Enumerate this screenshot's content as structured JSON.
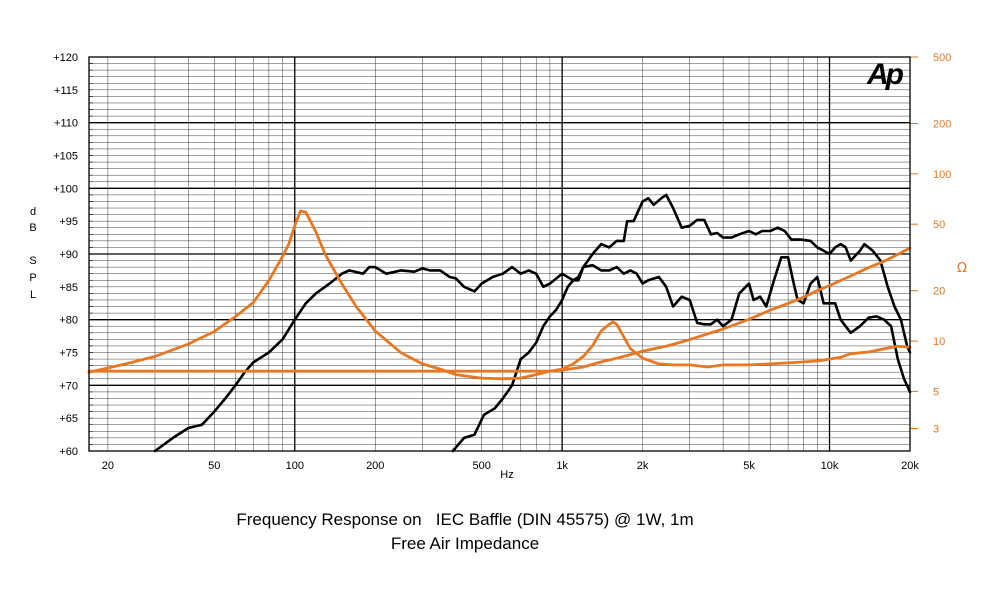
{
  "chart_data": {
    "type": "line",
    "title_lines": [
      "Frequency Response on   IEC Baffle (DIN 45575) @ 1W, 1m",
      "Free Air Impedance"
    ],
    "xlabel": "Hz",
    "ylabel_left_letters": [
      "d",
      "B",
      "",
      "S",
      "P",
      "L"
    ],
    "ylabel_right": "Ω",
    "logo_text": "Ap",
    "x_scale": "log",
    "xlim": [
      17,
      20000
    ],
    "ylim_left": [
      60,
      120
    ],
    "ylim_right": [
      2.2,
      500
    ],
    "y_right_scale": "log",
    "x_ticks": [
      {
        "value": 20,
        "label": "20"
      },
      {
        "value": 50,
        "label": "50"
      },
      {
        "value": 100,
        "label": "100"
      },
      {
        "value": 200,
        "label": "200"
      },
      {
        "value": 500,
        "label": "500"
      },
      {
        "value": 1000,
        "label": "1k"
      },
      {
        "value": 2000,
        "label": "2k"
      },
      {
        "value": 5000,
        "label": "5k"
      },
      {
        "value": 10000,
        "label": "10k"
      },
      {
        "value": 20000,
        "label": "20k"
      }
    ],
    "y_left_ticks": [
      {
        "value": 120,
        "label": "+120"
      },
      {
        "value": 115,
        "label": "+115"
      },
      {
        "value": 110,
        "label": "+110"
      },
      {
        "value": 105,
        "label": "+105"
      },
      {
        "value": 100,
        "label": "+100"
      },
      {
        "value": 95,
        "label": "+95"
      },
      {
        "value": 90,
        "label": "+90"
      },
      {
        "value": 85,
        "label": "+85"
      },
      {
        "value": 80,
        "label": "+80"
      },
      {
        "value": 75,
        "label": "+75"
      },
      {
        "value": 70,
        "label": "+70"
      },
      {
        "value": 65,
        "label": "+65"
      },
      {
        "value": 60,
        "label": "+60"
      }
    ],
    "y_right_ticks": [
      {
        "value": 500,
        "label": "500"
      },
      {
        "value": 200,
        "label": "200"
      },
      {
        "value": 100,
        "label": "100"
      },
      {
        "value": 50,
        "label": "50"
      },
      {
        "value": 20,
        "label": "20"
      },
      {
        "value": 10,
        "label": "10"
      },
      {
        "value": 5,
        "label": "5"
      },
      {
        "value": 3,
        "label": "3"
      }
    ],
    "grid": true,
    "series": [
      {
        "axis": "left",
        "color": "#000000",
        "points": [
          [
            30,
            60
          ],
          [
            35,
            62
          ],
          [
            40,
            63.5
          ],
          [
            45,
            64
          ],
          [
            50,
            66
          ],
          [
            55,
            68
          ],
          [
            60,
            70
          ],
          [
            65,
            72
          ],
          [
            70,
            73.5
          ],
          [
            80,
            75
          ],
          [
            90,
            77
          ],
          [
            100,
            80
          ],
          [
            110,
            82.5
          ],
          [
            120,
            84
          ],
          [
            135,
            85.5
          ],
          [
            150,
            87
          ],
          [
            160,
            87.5
          ],
          [
            180,
            87
          ],
          [
            190,
            88
          ],
          [
            200,
            88
          ],
          [
            220,
            87
          ],
          [
            250,
            87.5
          ],
          [
            280,
            87.3
          ],
          [
            300,
            87.8
          ],
          [
            320,
            87.5
          ],
          [
            350,
            87.5
          ],
          [
            380,
            86.5
          ],
          [
            400,
            86.3
          ],
          [
            430,
            85
          ],
          [
            470,
            84.3
          ],
          [
            500,
            85.5
          ],
          [
            550,
            86.5
          ],
          [
            600,
            87
          ],
          [
            650,
            88
          ],
          [
            700,
            87
          ],
          [
            750,
            87.5
          ],
          [
            800,
            87
          ],
          [
            850,
            85
          ],
          [
            900,
            85.5
          ],
          [
            1000,
            87
          ],
          [
            1100,
            86
          ],
          [
            1150,
            86
          ],
          [
            1200,
            88
          ],
          [
            1300,
            88.3
          ],
          [
            1400,
            87.5
          ],
          [
            1500,
            87.5
          ],
          [
            1600,
            88
          ],
          [
            1700,
            87
          ],
          [
            1800,
            87.5
          ],
          [
            1900,
            87
          ],
          [
            2000,
            85.5
          ],
          [
            2100,
            86
          ],
          [
            2300,
            86.5
          ],
          [
            2450,
            85
          ],
          [
            2600,
            82
          ],
          [
            2800,
            83.5
          ],
          [
            3000,
            83
          ],
          [
            3200,
            79.5
          ],
          [
            3400,
            79.3
          ],
          [
            3600,
            79.3
          ],
          [
            3800,
            80
          ],
          [
            4000,
            79
          ],
          [
            4300,
            80
          ],
          [
            4600,
            84
          ],
          [
            5000,
            85.5
          ],
          [
            5200,
            83
          ],
          [
            5500,
            83.5
          ],
          [
            5800,
            82
          ],
          [
            6200,
            86
          ],
          [
            6600,
            89.5
          ],
          [
            7000,
            89.5
          ],
          [
            7300,
            86
          ],
          [
            7600,
            83
          ],
          [
            8000,
            82.5
          ],
          [
            8500,
            85.5
          ],
          [
            9000,
            86.5
          ],
          [
            9500,
            82.5
          ],
          [
            10000,
            82.5
          ],
          [
            10500,
            82.5
          ],
          [
            11000,
            80
          ],
          [
            12000,
            78
          ],
          [
            13000,
            79
          ],
          [
            14000,
            80.3
          ],
          [
            15000,
            80.5
          ],
          [
            16000,
            80
          ],
          [
            17000,
            79
          ],
          [
            18000,
            74
          ],
          [
            19000,
            71
          ],
          [
            20000,
            69
          ]
        ]
      },
      {
        "axis": "left",
        "color": "#000000",
        "points": [
          [
            390,
            60
          ],
          [
            430,
            62
          ],
          [
            470,
            62.5
          ],
          [
            510,
            65.5
          ],
          [
            560,
            66.5
          ],
          [
            600,
            68
          ],
          [
            650,
            70
          ],
          [
            700,
            74
          ],
          [
            750,
            75
          ],
          [
            800,
            76.5
          ],
          [
            850,
            79
          ],
          [
            900,
            80.5
          ],
          [
            950,
            81.5
          ],
          [
            1000,
            83
          ],
          [
            1050,
            85
          ],
          [
            1100,
            86
          ],
          [
            1150,
            86.5
          ],
          [
            1200,
            88
          ],
          [
            1300,
            90
          ],
          [
            1400,
            91.5
          ],
          [
            1500,
            91
          ],
          [
            1600,
            92
          ],
          [
            1700,
            92
          ],
          [
            1750,
            95
          ],
          [
            1850,
            95
          ],
          [
            2000,
            98
          ],
          [
            2100,
            98.5
          ],
          [
            2200,
            97.5
          ],
          [
            2350,
            98.5
          ],
          [
            2450,
            99
          ],
          [
            2600,
            97
          ],
          [
            2800,
            94
          ],
          [
            3000,
            94.3
          ],
          [
            3200,
            95.2
          ],
          [
            3400,
            95.2
          ],
          [
            3600,
            93
          ],
          [
            3800,
            93.2
          ],
          [
            4000,
            92.5
          ],
          [
            4300,
            92.5
          ],
          [
            4600,
            93
          ],
          [
            5000,
            93.5
          ],
          [
            5300,
            93
          ],
          [
            5600,
            93.5
          ],
          [
            6000,
            93.5
          ],
          [
            6400,
            94
          ],
          [
            6800,
            93.5
          ],
          [
            7200,
            92.2
          ],
          [
            7800,
            92.2
          ],
          [
            8500,
            92
          ],
          [
            9000,
            91
          ],
          [
            9500,
            90.5
          ],
          [
            10000,
            90
          ],
          [
            10500,
            91
          ],
          [
            11000,
            91.5
          ],
          [
            11500,
            91
          ],
          [
            12000,
            89
          ],
          [
            13000,
            90.5
          ],
          [
            13500,
            91.5
          ],
          [
            14500,
            90.5
          ],
          [
            15500,
            89
          ],
          [
            16500,
            85
          ],
          [
            17500,
            82
          ],
          [
            18500,
            80
          ],
          [
            19500,
            76
          ],
          [
            20000,
            75
          ]
        ]
      },
      {
        "axis": "right",
        "color": "#e87722",
        "points": [
          [
            17,
            6.6
          ],
          [
            20,
            6.6
          ],
          [
            30,
            6.6
          ],
          [
            50,
            6.6
          ],
          [
            100,
            6.6
          ],
          [
            200,
            6.6
          ],
          [
            300,
            6.6
          ],
          [
            400,
            6.6
          ],
          [
            500,
            6.6
          ],
          [
            700,
            6.6
          ],
          [
            900,
            6.6
          ],
          [
            1000,
            6.7
          ],
          [
            1200,
            7.0
          ],
          [
            1400,
            7.5
          ],
          [
            1500,
            7.7
          ],
          [
            1600,
            7.9
          ],
          [
            1800,
            8.3
          ],
          [
            2000,
            8.7
          ],
          [
            2500,
            9.4
          ],
          [
            3000,
            10.2
          ],
          [
            4000,
            11.8
          ],
          [
            5000,
            13.5
          ],
          [
            6000,
            15.3
          ],
          [
            7000,
            16.8
          ],
          [
            8000,
            18.3
          ],
          [
            9000,
            20.0
          ],
          [
            10000,
            21.5
          ],
          [
            12000,
            24.5
          ],
          [
            14000,
            27.5
          ],
          [
            16000,
            30.0
          ],
          [
            18000,
            33.0
          ],
          [
            20000,
            36.0
          ]
        ]
      },
      {
        "axis": "right",
        "color": "#e87722",
        "points": [
          [
            17,
            6.5
          ],
          [
            20,
            6.9
          ],
          [
            25,
            7.5
          ],
          [
            30,
            8.1
          ],
          [
            40,
            9.6
          ],
          [
            50,
            11.4
          ],
          [
            60,
            14
          ],
          [
            70,
            17
          ],
          [
            80,
            23
          ],
          [
            90,
            32
          ],
          [
            95,
            38
          ],
          [
            100,
            49
          ],
          [
            105,
            60
          ],
          [
            110,
            59
          ],
          [
            120,
            45
          ],
          [
            130,
            33
          ],
          [
            150,
            22
          ],
          [
            170,
            16
          ],
          [
            200,
            11.5
          ],
          [
            250,
            8.5
          ],
          [
            300,
            7.3
          ],
          [
            350,
            6.8
          ],
          [
            400,
            6.3
          ],
          [
            500,
            6.0
          ],
          [
            600,
            5.95
          ],
          [
            700,
            6.0
          ],
          [
            800,
            6.3
          ],
          [
            900,
            6.6
          ],
          [
            1000,
            6.8
          ],
          [
            1100,
            7.3
          ],
          [
            1200,
            8.1
          ],
          [
            1300,
            9.4
          ],
          [
            1400,
            11.5
          ],
          [
            1500,
            12.6
          ],
          [
            1550,
            13.0
          ],
          [
            1600,
            12.6
          ],
          [
            1700,
            10.6
          ],
          [
            1800,
            9.0
          ],
          [
            2000,
            7.9
          ],
          [
            2300,
            7.3
          ],
          [
            2600,
            7.2
          ],
          [
            3000,
            7.2
          ],
          [
            3500,
            7.0
          ],
          [
            4000,
            7.2
          ],
          [
            5000,
            7.2
          ],
          [
            6000,
            7.3
          ],
          [
            7000,
            7.4
          ],
          [
            8000,
            7.5
          ],
          [
            9000,
            7.6
          ],
          [
            10000,
            7.8
          ],
          [
            11000,
            8.0
          ],
          [
            12000,
            8.4
          ],
          [
            14000,
            8.6
          ],
          [
            16000,
            9.0
          ],
          [
            18000,
            9.3
          ],
          [
            20000,
            9.2
          ]
        ]
      }
    ]
  }
}
